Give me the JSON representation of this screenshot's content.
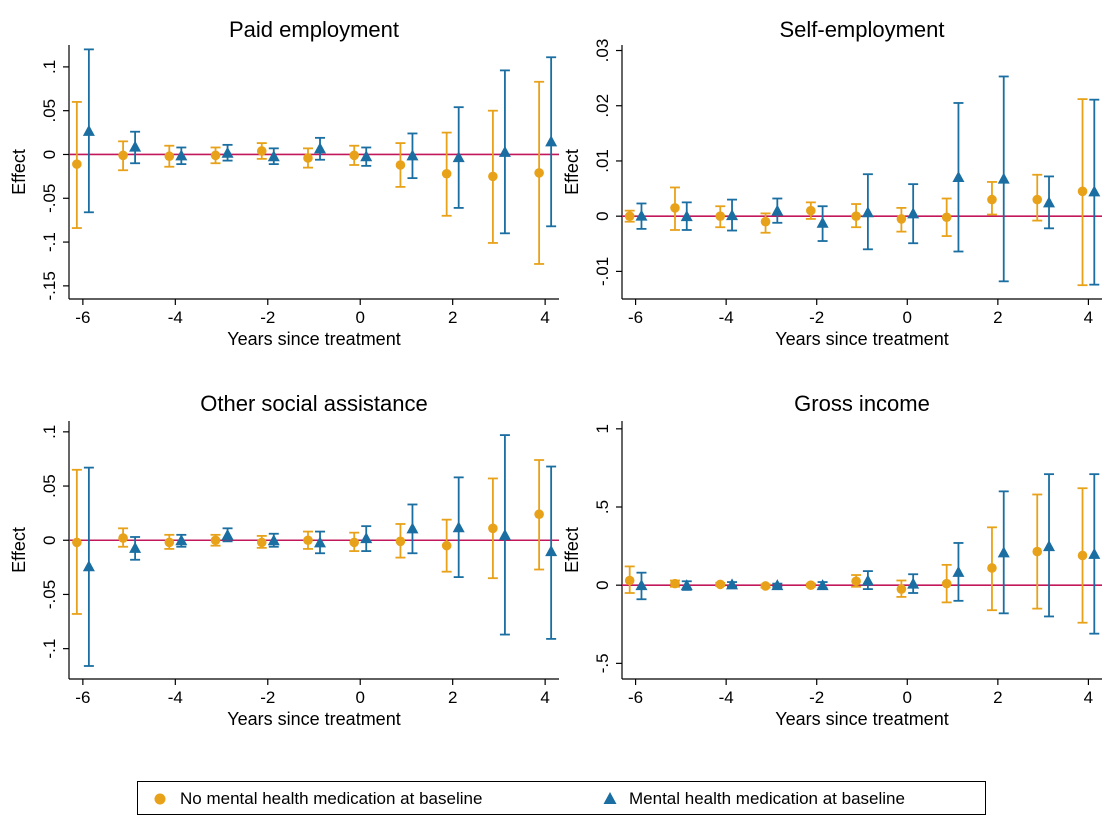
{
  "colors": {
    "series_a": "#e8a21a",
    "series_b": "#1a6ea1",
    "zero_line": "#c2185b"
  },
  "legend": {
    "series_a_label": "No mental health medication at baseline",
    "series_b_label": "Mental health medication at baseline",
    "placement": "bottom"
  },
  "chart_data": [
    {
      "type": "scatter",
      "title": "Paid employment",
      "xlabel": "Years since treatment",
      "ylabel": "Effect",
      "xlim": [
        -6.3,
        4.3
      ],
      "ylim": [
        -0.165,
        0.125
      ],
      "xticks": [
        -6,
        -4,
        -2,
        0,
        2,
        4
      ],
      "xtick_labels": [
        "-6",
        "-4",
        "-2",
        "0",
        "2",
        "4"
      ],
      "yticks": [
        -0.15,
        -0.1,
        -0.05,
        0,
        0.05,
        0.1
      ],
      "ytick_labels": [
        "-.15",
        "-.1",
        "-.05",
        "0",
        ".05",
        ".1"
      ],
      "grid": false,
      "series": [
        {
          "name": "No mental health medication at baseline",
          "marker": "circle",
          "x": [
            -6,
            -5,
            -4,
            -3,
            -2,
            -1,
            0,
            1,
            2,
            3,
            4
          ],
          "y": [
            -0.011,
            -0.001,
            -0.002,
            -0.001,
            0.004,
            -0.004,
            -0.001,
            -0.012,
            -0.022,
            -0.025,
            -0.021
          ],
          "lo": [
            -0.084,
            -0.018,
            -0.014,
            -0.01,
            -0.005,
            -0.015,
            -0.012,
            -0.037,
            -0.07,
            -0.101,
            -0.125
          ],
          "hi": [
            0.06,
            0.015,
            0.01,
            0.008,
            0.013,
            0.007,
            0.01,
            0.013,
            0.025,
            0.05,
            0.083
          ]
        },
        {
          "name": "Mental health medication at baseline",
          "marker": "triangle",
          "x": [
            -6,
            -5,
            -4,
            -3,
            -2,
            -1,
            0,
            1,
            2,
            3,
            4
          ],
          "y": [
            0.027,
            0.009,
            -0.001,
            0.002,
            -0.002,
            0.007,
            -0.002,
            -0.001,
            -0.003,
            0.003,
            0.015
          ],
          "lo": [
            -0.066,
            -0.01,
            -0.011,
            -0.007,
            -0.011,
            -0.006,
            -0.013,
            -0.027,
            -0.061,
            -0.09,
            -0.082
          ],
          "hi": [
            0.12,
            0.026,
            0.008,
            0.011,
            0.007,
            0.019,
            0.008,
            0.024,
            0.054,
            0.096,
            0.111
          ]
        }
      ]
    },
    {
      "type": "scatter",
      "title": "Self-employment",
      "xlabel": "Years since treatment",
      "ylabel": "Effect",
      "xlim": [
        -6.3,
        4.3
      ],
      "ylim": [
        -0.015,
        0.031
      ],
      "xticks": [
        -6,
        -4,
        -2,
        0,
        2,
        4
      ],
      "xtick_labels": [
        "-6",
        "-4",
        "-2",
        "0",
        "2",
        "4"
      ],
      "yticks": [
        -0.01,
        0,
        0.01,
        0.02,
        0.03
      ],
      "ytick_labels": [
        "-.01",
        "0",
        ".01",
        ".02",
        ".03"
      ],
      "grid": false,
      "series": [
        {
          "name": "No mental health medication at baseline",
          "marker": "circle",
          "x": [
            -6,
            -5,
            -4,
            -3,
            -2,
            -1,
            0,
            1,
            2,
            3,
            4
          ],
          "y": [
            0.0,
            0.0015,
            0.0,
            -0.001,
            0.001,
            0.0,
            -0.0005,
            -0.0002,
            0.003,
            0.003,
            0.0045
          ],
          "lo": [
            -0.001,
            -0.0025,
            -0.002,
            -0.003,
            -0.0005,
            -0.002,
            -0.0028,
            -0.0036,
            0.0003,
            -0.0008,
            -0.0125
          ],
          "hi": [
            0.001,
            0.0052,
            0.0018,
            0.0005,
            0.0025,
            0.0022,
            0.0015,
            0.0032,
            0.0062,
            0.0075,
            0.0212
          ]
        },
        {
          "name": "Mental health medication at baseline",
          "marker": "triangle",
          "x": [
            -6,
            -5,
            -4,
            -3,
            -2,
            -1,
            0,
            1,
            2,
            3,
            4
          ],
          "y": [
            0.0001,
            0.0,
            0.0002,
            0.001,
            -0.0012,
            0.0007,
            0.0005,
            0.0071,
            0.0068,
            0.0025,
            0.0045
          ],
          "lo": [
            -0.0023,
            -0.0025,
            -0.0026,
            -0.0012,
            -0.0045,
            -0.006,
            -0.0049,
            -0.0064,
            -0.0118,
            -0.0022,
            -0.0124
          ],
          "hi": [
            0.0023,
            0.0025,
            0.003,
            0.0032,
            0.0018,
            0.0076,
            0.0058,
            0.0205,
            0.0253,
            0.0072,
            0.0211
          ]
        }
      ]
    },
    {
      "type": "scatter",
      "title": "Other social assistance",
      "xlabel": "Years since treatment",
      "ylabel": "Effect",
      "xlim": [
        -6.3,
        4.3
      ],
      "ylim": [
        -0.128,
        0.11
      ],
      "xticks": [
        -6,
        -4,
        -2,
        0,
        2,
        4
      ],
      "xtick_labels": [
        "-6",
        "-4",
        "-2",
        "0",
        "2",
        "4"
      ],
      "yticks": [
        -0.1,
        -0.05,
        0,
        0.05,
        0.1
      ],
      "ytick_labels": [
        "-.1",
        "-.05",
        "0",
        ".05",
        ".1"
      ],
      "grid": false,
      "series": [
        {
          "name": "No mental health medication at baseline",
          "marker": "circle",
          "x": [
            -6,
            -5,
            -4,
            -3,
            -2,
            -1,
            0,
            1,
            2,
            3,
            4
          ],
          "y": [
            -0.002,
            0.002,
            -0.002,
            0.0,
            -0.002,
            0.0,
            -0.002,
            -0.001,
            -0.005,
            0.011,
            0.024
          ],
          "lo": [
            -0.068,
            -0.006,
            -0.008,
            -0.005,
            -0.007,
            -0.008,
            -0.01,
            -0.016,
            -0.029,
            -0.035,
            -0.027
          ],
          "hi": [
            0.065,
            0.011,
            0.005,
            0.005,
            0.004,
            0.008,
            0.007,
            0.015,
            0.019,
            0.057,
            0.074
          ]
        },
        {
          "name": "Mental health medication at baseline",
          "marker": "triangle",
          "x": [
            -6,
            -5,
            -4,
            -3,
            -2,
            -1,
            0,
            1,
            2,
            3,
            4
          ],
          "y": [
            -0.024,
            -0.007,
            0.0,
            0.005,
            0.0,
            -0.002,
            0.002,
            0.011,
            0.012,
            0.005,
            -0.01
          ],
          "lo": [
            -0.116,
            -0.018,
            -0.006,
            -0.001,
            -0.006,
            -0.012,
            -0.01,
            -0.012,
            -0.034,
            -0.087,
            -0.091
          ],
          "hi": [
            0.067,
            0.003,
            0.005,
            0.011,
            0.006,
            0.008,
            0.013,
            0.033,
            0.058,
            0.097,
            0.068
          ]
        }
      ]
    },
    {
      "type": "scatter",
      "title": "Gross income",
      "xlabel": "Years since treatment",
      "ylabel": "Effect",
      "xlim": [
        -6.3,
        4.3
      ],
      "ylim": [
        -0.6,
        1.05
      ],
      "xticks": [
        -6,
        -4,
        -2,
        0,
        2,
        4
      ],
      "xtick_labels": [
        "-6",
        "-4",
        "-2",
        "0",
        "2",
        "4"
      ],
      "yticks": [
        -0.5,
        0,
        0.5,
        1
      ],
      "ytick_labels": [
        "-.5",
        "0",
        ".5",
        "1"
      ],
      "grid": false,
      "series": [
        {
          "name": "No mental health medication at baseline",
          "marker": "circle",
          "x": [
            -6,
            -5,
            -4,
            -3,
            -2,
            -1,
            0,
            1,
            2,
            3,
            4
          ],
          "y": [
            0.03,
            0.01,
            0.005,
            -0.005,
            0.0,
            0.025,
            -0.025,
            0.01,
            0.11,
            0.215,
            0.19
          ],
          "lo": [
            -0.05,
            -0.01,
            -0.005,
            -0.015,
            -0.01,
            -0.01,
            -0.075,
            -0.11,
            -0.16,
            -0.15,
            -0.24
          ],
          "hi": [
            0.12,
            0.03,
            0.015,
            0.005,
            0.01,
            0.065,
            0.03,
            0.13,
            0.37,
            0.58,
            0.62
          ]
        },
        {
          "name": "Mental health medication at baseline",
          "marker": "triangle",
          "x": [
            -6,
            -5,
            -4,
            -3,
            -2,
            -1,
            0,
            1,
            2,
            3,
            4
          ],
          "y": [
            0.0,
            0.0,
            0.005,
            0.0,
            0.0,
            0.03,
            0.01,
            0.085,
            0.21,
            0.25,
            0.2
          ],
          "lo": [
            -0.09,
            -0.03,
            -0.01,
            -0.01,
            -0.02,
            -0.025,
            -0.05,
            -0.1,
            -0.18,
            -0.2,
            -0.31
          ],
          "hi": [
            0.08,
            0.025,
            0.02,
            0.01,
            0.02,
            0.09,
            0.07,
            0.27,
            0.6,
            0.71,
            0.71
          ]
        }
      ]
    }
  ]
}
